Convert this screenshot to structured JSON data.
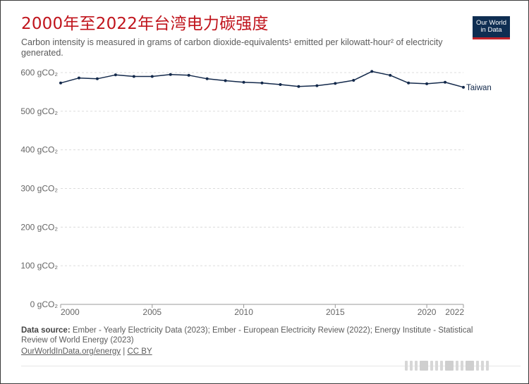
{
  "title": "2000年至2022年台湾电力碳强度",
  "logo": {
    "line1": "Our World",
    "line2": "in Data"
  },
  "subtitle": "Carbon intensity is measured in grams of carbon dioxide-equivalents¹ emitted per kilowatt-hour² of electricity generated.",
  "chart_data": {
    "type": "line",
    "title": "2000年至2022年台湾电力碳强度",
    "subtitle": "Carbon intensity is measured in grams of carbon dioxide-equivalents¹ emitted per kilowatt-hour² of electricity generated.",
    "xlabel": "",
    "ylabel": "",
    "xlim": [
      2000,
      2022
    ],
    "ylim": [
      0,
      600
    ],
    "y_ticks": [
      0,
      100,
      200,
      300,
      400,
      500,
      600
    ],
    "y_tick_labels": [
      "0 gCO₂",
      "100 gCO₂",
      "200 gCO₂",
      "300 gCO₂",
      "400 gCO₂",
      "500 gCO₂",
      "600 gCO₂"
    ],
    "x_ticks": [
      2000,
      2005,
      2010,
      2015,
      2020,
      2022
    ],
    "x_tick_labels": [
      "2000",
      "2005",
      "2010",
      "2015",
      "2020",
      "2022"
    ],
    "grid": "horizontal dashed",
    "series": [
      {
        "name": "Taiwan",
        "color": "#13294b",
        "x": [
          2000,
          2001,
          2002,
          2003,
          2004,
          2005,
          2006,
          2007,
          2008,
          2009,
          2010,
          2011,
          2012,
          2013,
          2014,
          2015,
          2016,
          2017,
          2018,
          2019,
          2020,
          2021,
          2022
        ],
        "values": [
          573,
          586,
          584,
          594,
          590,
          590,
          595,
          593,
          584,
          579,
          575,
          573,
          569,
          564,
          566,
          572,
          580,
          603,
          593,
          573,
          571,
          575,
          562
        ]
      }
    ]
  },
  "footer": {
    "source_label": "Data source:",
    "source_text": "Ember - Yearly Electricity Data (2023); Ember - European Electricity Review (2022); Energy Institute - Statistical Review of World Energy (2023)",
    "link": "OurWorldInData.org/energy",
    "separator": "|",
    "license": "CC BY"
  }
}
